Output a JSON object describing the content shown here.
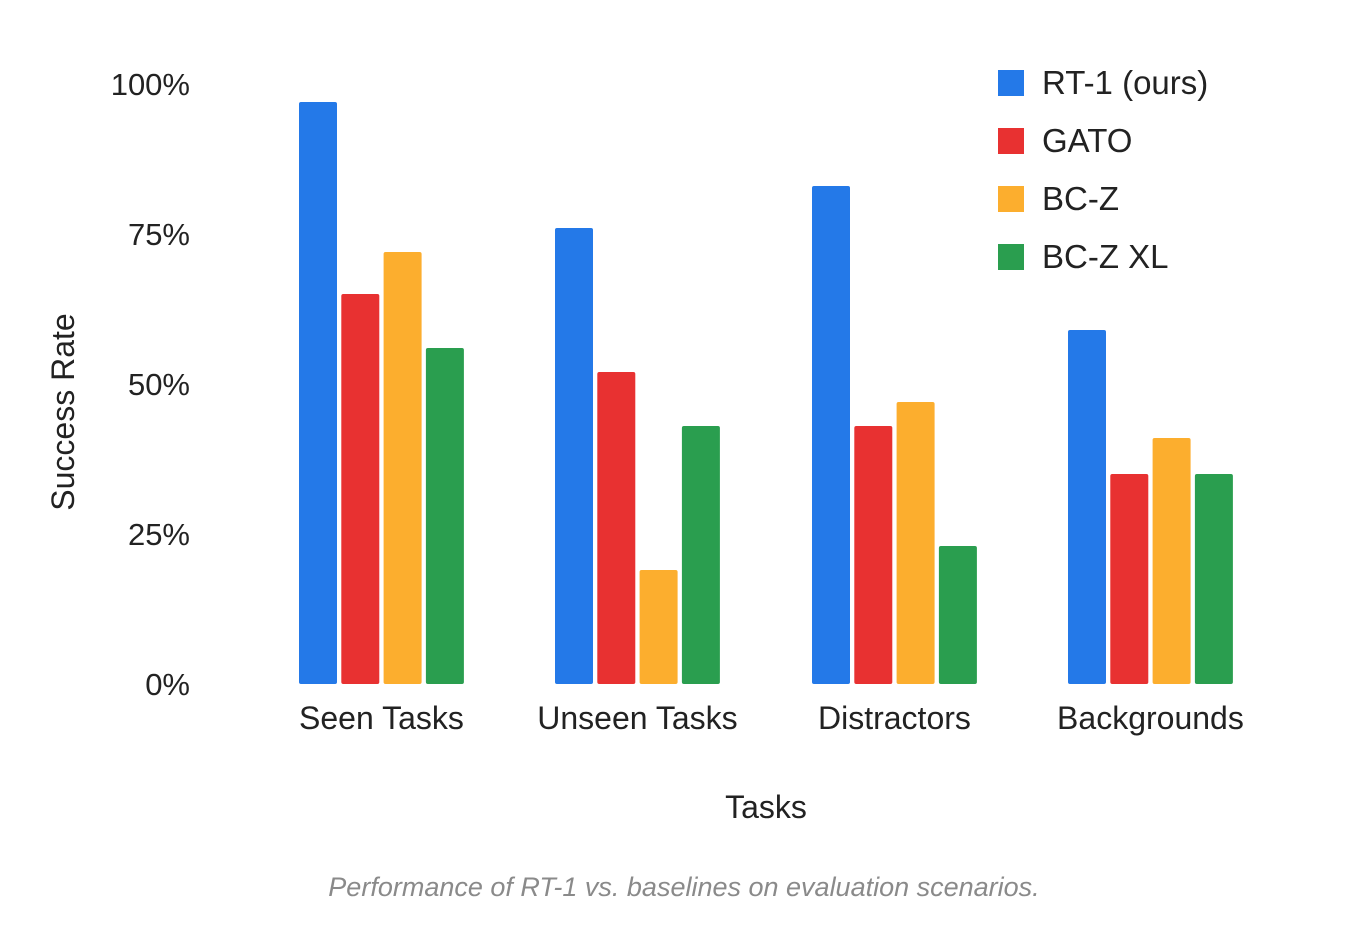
{
  "caption": "Performance of RT-1 vs. baselines on evaluation scenarios.",
  "chart_data": {
    "type": "bar",
    "categories": [
      "Seen Tasks",
      "Unseen Tasks",
      "Distractors",
      "Backgrounds"
    ],
    "series": [
      {
        "name": "RT-1 (ours)",
        "color": "#2479E8",
        "values": [
          97,
          76,
          83,
          59
        ]
      },
      {
        "name": "GATO",
        "color": "#E83131",
        "values": [
          65,
          52,
          43,
          35
        ]
      },
      {
        "name": "BC-Z",
        "color": "#FCAE2E",
        "values": [
          72,
          19,
          47,
          41
        ]
      },
      {
        "name": "BC-Z XL",
        "color": "#2A9E4F",
        "values": [
          56,
          43,
          23,
          35
        ]
      }
    ],
    "xlabel": "Tasks",
    "ylabel": "Success Rate",
    "ylim": [
      0,
      100
    ],
    "yticks": [
      "0%",
      "25%",
      "50%",
      "75%",
      "100%"
    ],
    "grid": false,
    "legend_position": "top-right"
  }
}
